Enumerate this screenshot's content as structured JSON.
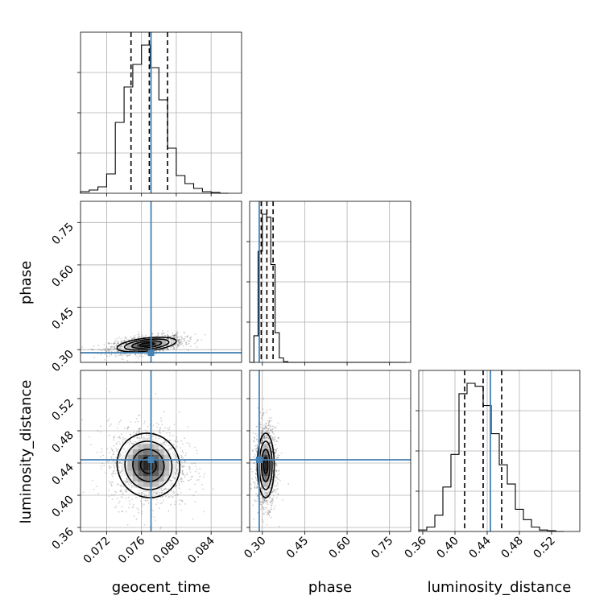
{
  "chart_data": {
    "type": "corner",
    "parameters": [
      "geocent_time",
      "phase",
      "luminosity_distance"
    ],
    "ranges": {
      "geocent_time": [
        0.069,
        0.0875
      ],
      "phase": [
        0.255,
        0.825
      ],
      "luminosity_distance": [
        0.355,
        0.555
      ]
    },
    "ticks": {
      "geocent_time": [
        0.072,
        0.076,
        0.08,
        0.084
      ],
      "phase": [
        0.3,
        0.45,
        0.6,
        0.75
      ],
      "luminosity_distance": [
        0.36,
        0.4,
        0.44,
        0.48,
        0.52
      ]
    },
    "tick_labels": {
      "geocent_time": [
        "0.072",
        "0.076",
        "0.080",
        "0.084"
      ],
      "phase": [
        "0.30",
        "0.45",
        "0.60",
        "0.75"
      ],
      "luminosity_distance": [
        "0.36",
        "0.40",
        "0.44",
        "0.48",
        "0.52"
      ]
    },
    "truths": {
      "geocent_time": 0.0771,
      "phase": 0.289,
      "luminosity_distance": 0.444
    },
    "quantiles": {
      "geocent_time": [
        0.0748,
        0.0769,
        0.079
      ],
      "phase": [
        0.296,
        0.316,
        0.338
      ],
      "luminosity_distance": [
        0.412,
        0.435,
        0.458
      ]
    },
    "marginals": {
      "geocent_time": {
        "bins": [
          0.069,
          0.07,
          0.071,
          0.072,
          0.073,
          0.074,
          0.075,
          0.076,
          0.077,
          0.078,
          0.079,
          0.08,
          0.081,
          0.082,
          0.083,
          0.084,
          0.085,
          0.086
        ],
        "counts": [
          1,
          2,
          4,
          12,
          44,
          66,
          80,
          92,
          78,
          58,
          28,
          11,
          6,
          3,
          1,
          0.5,
          0
        ]
      },
      "phase": {
        "bins": [
          0.255,
          0.27,
          0.285,
          0.3,
          0.315,
          0.33,
          0.345,
          0.36,
          0.375,
          0.39,
          0.405,
          0.42,
          0.435,
          0.45,
          0.465,
          0.48,
          0.495,
          0.51,
          0.525,
          0.54,
          0.555,
          0.57,
          0.585,
          0.6,
          0.615,
          0.63,
          0.645,
          0.66,
          0.675,
          0.69,
          0.705,
          0.72,
          0.735,
          0.75,
          0.765,
          0.78,
          0.795,
          0.81
        ],
        "counts": [
          0,
          18,
          75,
          100,
          98,
          66,
          20,
          3,
          0.5,
          0,
          0,
          0,
          0,
          0,
          0,
          0,
          0,
          0,
          0,
          0,
          0,
          0,
          0,
          0,
          0,
          0,
          0,
          0,
          0,
          0,
          0,
          0,
          0,
          0,
          0,
          0,
          0
        ]
      },
      "luminosity_distance": {
        "bins": [
          0.355,
          0.365,
          0.375,
          0.385,
          0.395,
          0.405,
          0.415,
          0.425,
          0.435,
          0.445,
          0.455,
          0.465,
          0.475,
          0.485,
          0.495,
          0.505,
          0.515,
          0.525,
          0.535
        ],
        "counts": [
          1,
          3,
          11,
          30,
          52,
          93,
          100,
          98,
          85,
          66,
          45,
          32,
          15,
          8,
          3,
          1,
          0.5,
          0
        ]
      }
    },
    "joint": {
      "geocent_time__phase": {
        "center": [
          0.0766,
          0.318
        ],
        "sigma": [
          0.0017,
          0.013
        ],
        "rho": 0.45
      },
      "geocent_time__luminosity_distance": {
        "center": [
          0.0768,
          0.437
        ],
        "sigma": [
          0.0018,
          0.02
        ],
        "rho": -0.05
      },
      "phase__luminosity_distance": {
        "center": [
          0.312,
          0.437
        ],
        "sigma": [
          0.015,
          0.02
        ],
        "rho": 0.0
      }
    }
  }
}
